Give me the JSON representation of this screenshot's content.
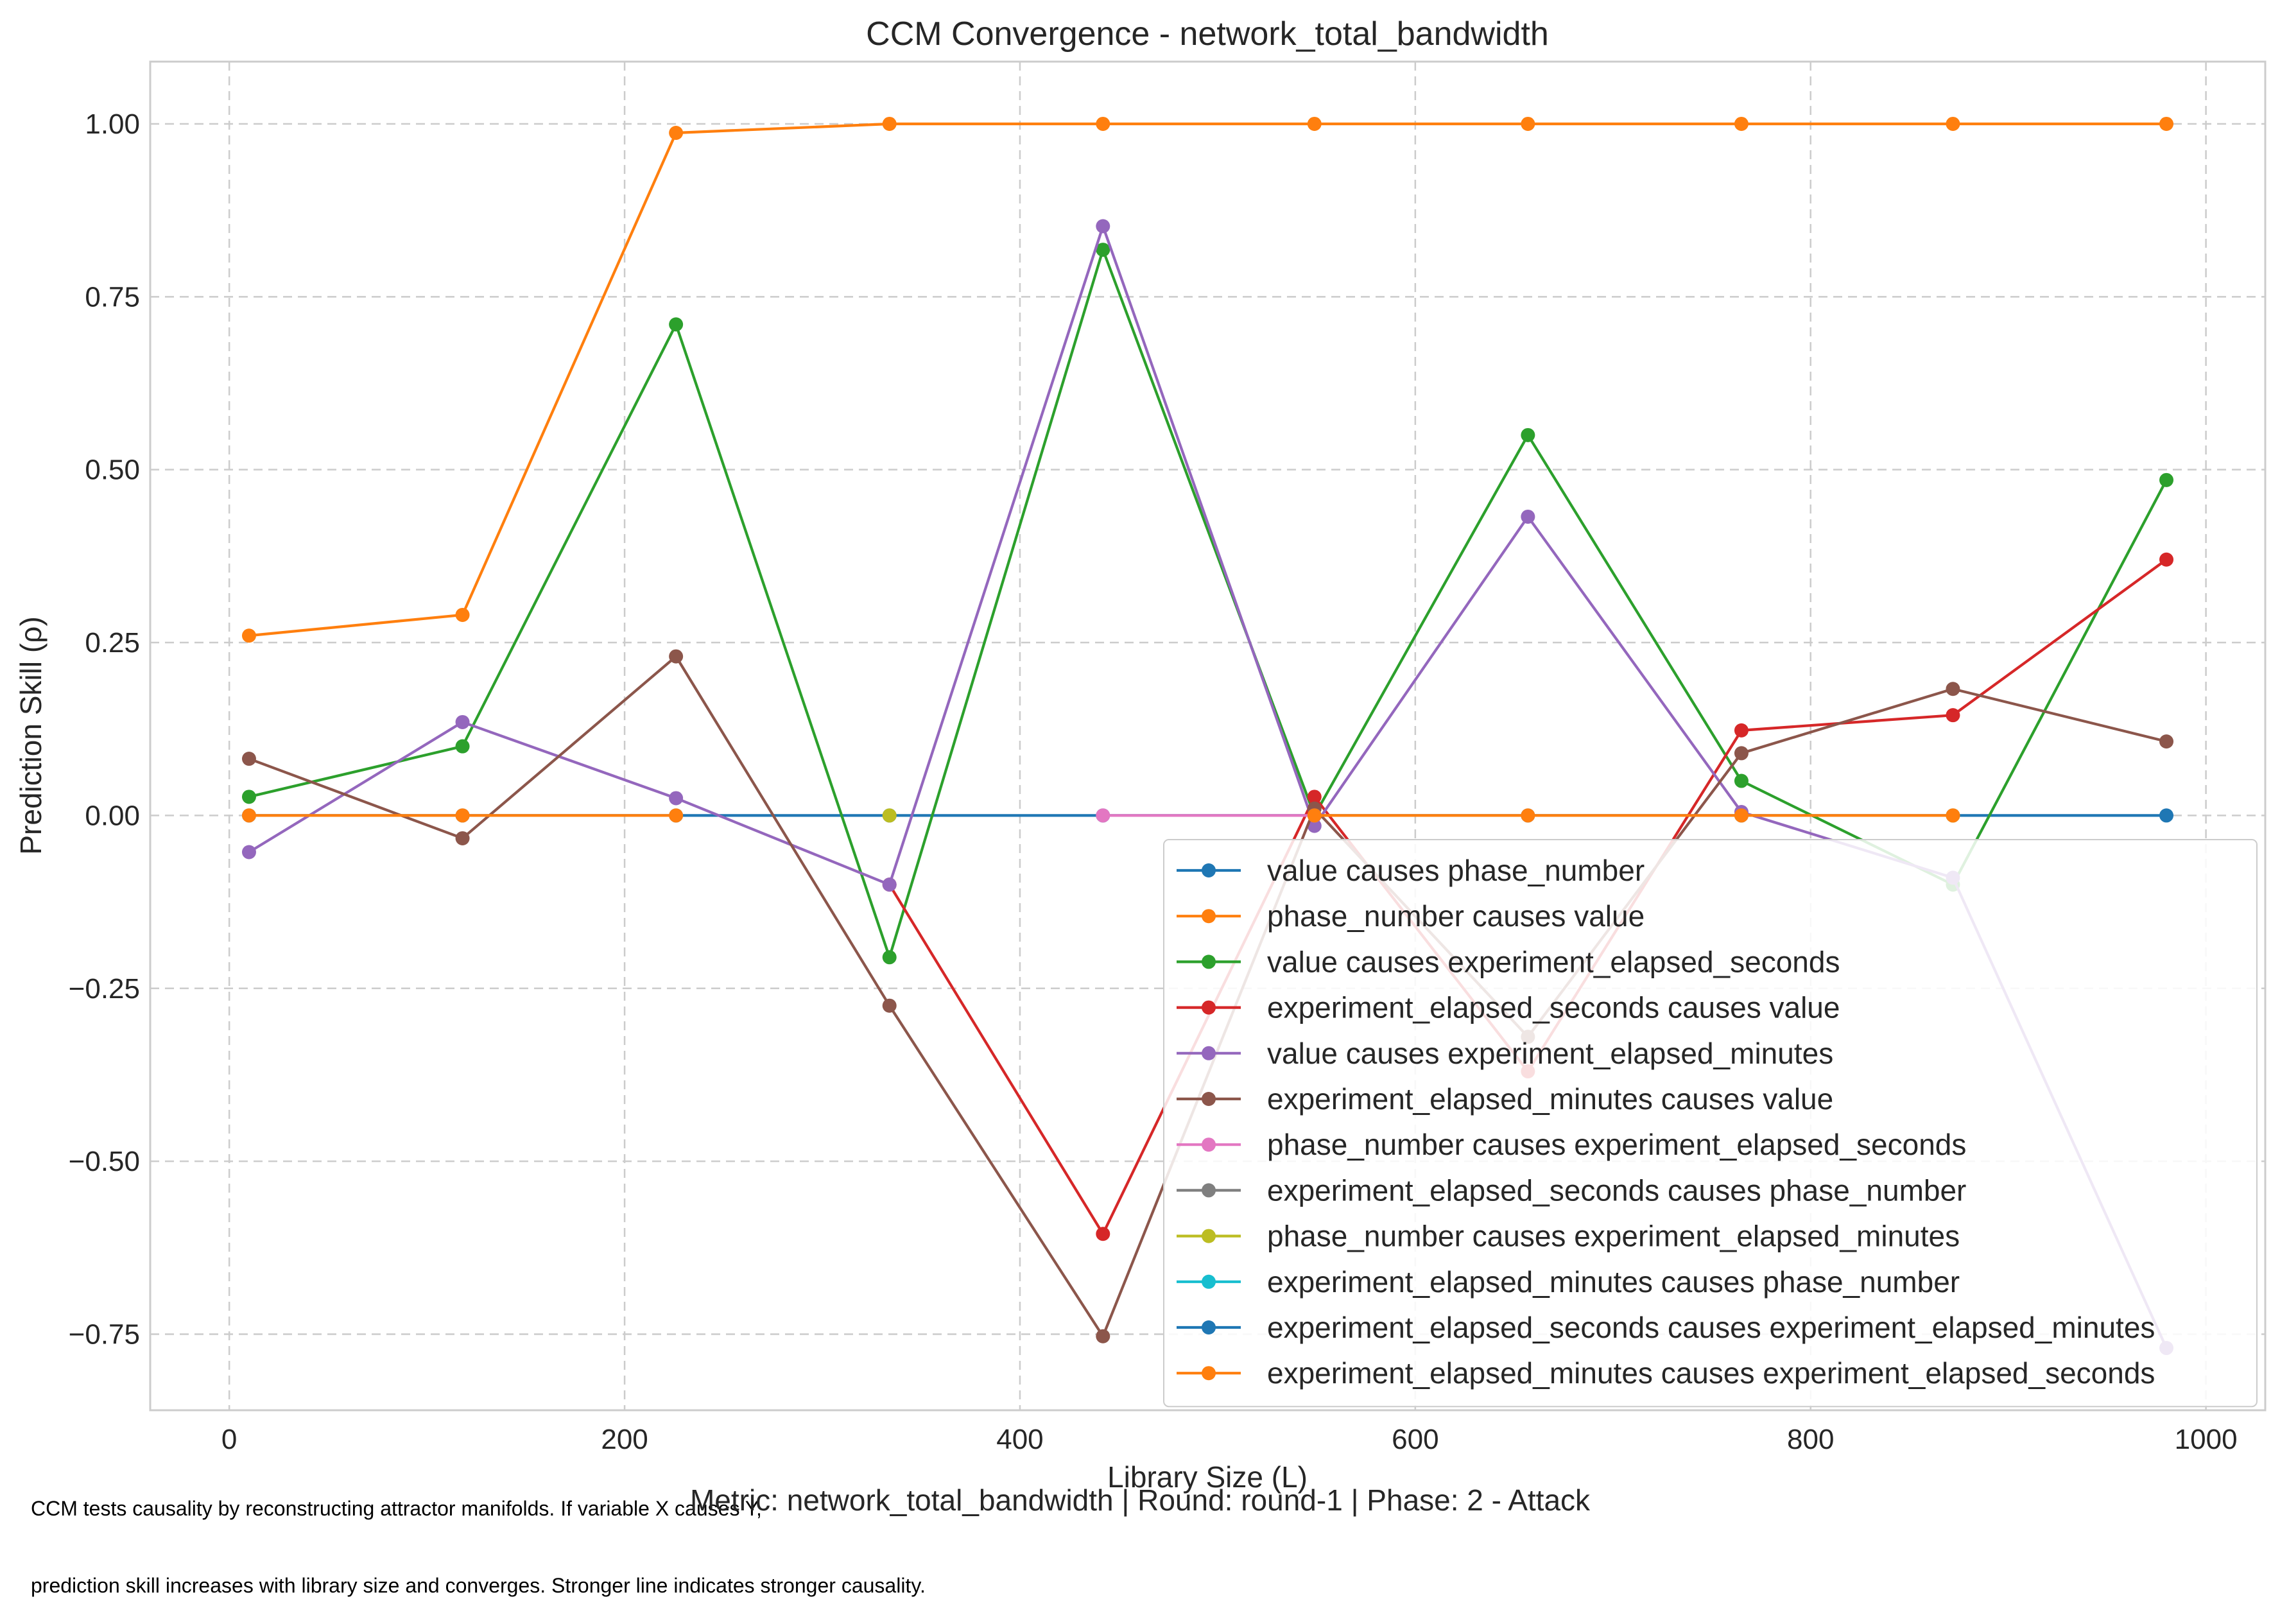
{
  "chart_data": {
    "type": "line",
    "title": "CCM Convergence - network_total_bandwidth",
    "xlabel": "Library Size (L)",
    "ylabel": "Prediction Skill (ρ)",
    "xlim": [
      -40,
      1030
    ],
    "ylim": [
      -0.86,
      1.09
    ],
    "xticks": [
      0,
      200,
      400,
      600,
      800,
      1000
    ],
    "xtick_labels": [
      "0",
      "200",
      "400",
      "600",
      "800",
      "1000"
    ],
    "yticks": [
      -0.75,
      -0.5,
      -0.25,
      0.0,
      0.25,
      0.5,
      0.75,
      1.0
    ],
    "ytick_labels": [
      "−0.75",
      "−0.50",
      "−0.25",
      "0.00",
      "0.25",
      "0.50",
      "0.75",
      "1.00"
    ],
    "grid": true,
    "legend_position": "lower-right",
    "x": [
      10,
      118,
      226,
      334,
      442,
      549,
      657,
      765,
      872,
      980
    ],
    "series": [
      {
        "name": "value causes phase_number",
        "color": "#1f77b4",
        "values": [
          0,
          0,
          0,
          0,
          0,
          0,
          0,
          0,
          0,
          0
        ]
      },
      {
        "name": "phase_number causes value",
        "color": "#ff7f0e",
        "values": [
          0.26,
          0.29,
          0.987,
          1.0,
          1.0,
          1.0,
          1.0,
          1.0,
          1.0,
          1.0
        ]
      },
      {
        "name": "value causes experiment_elapsed_seconds",
        "color": "#2ca02c",
        "values": [
          0.027,
          0.1,
          0.71,
          -0.205,
          0.818,
          0.0,
          0.55,
          0.05,
          -0.1,
          0.485
        ]
      },
      {
        "name": "experiment_elapsed_seconds causes value",
        "color": "#d62728",
        "values": [
          null,
          null,
          null,
          -0.1,
          -0.605,
          0.027,
          -0.37,
          0.123,
          0.145,
          0.37
        ]
      },
      {
        "name": "value causes experiment_elapsed_minutes",
        "color": "#9467bd",
        "values": [
          -0.053,
          0.135,
          0.025,
          -0.1,
          0.852,
          -0.015,
          0.432,
          0.005,
          -0.09,
          -0.77
        ]
      },
      {
        "name": "experiment_elapsed_minutes causes value",
        "color": "#8c564b",
        "values": [
          0.082,
          -0.033,
          0.23,
          -0.275,
          -0.753,
          0.01,
          -0.32,
          0.09,
          0.183,
          0.107
        ]
      },
      {
        "name": "phase_number causes experiment_elapsed_seconds",
        "color": "#e377c2",
        "values": [
          null,
          null,
          null,
          null,
          0,
          0,
          null,
          null,
          null,
          null
        ]
      },
      {
        "name": "experiment_elapsed_seconds causes phase_number",
        "color": "#7f7f7f",
        "values": [
          null,
          null,
          null,
          null,
          null,
          null,
          null,
          null,
          null,
          null
        ]
      },
      {
        "name": "phase_number causes experiment_elapsed_minutes",
        "color": "#bcbd22",
        "values": [
          null,
          null,
          null,
          0,
          null,
          null,
          null,
          null,
          0,
          null
        ]
      },
      {
        "name": "experiment_elapsed_minutes causes phase_number",
        "color": "#17becf",
        "values": [
          null,
          null,
          null,
          null,
          null,
          null,
          null,
          null,
          null,
          null
        ]
      },
      {
        "name": "experiment_elapsed_seconds causes experiment_elapsed_minutes",
        "color": "#1f77b4",
        "values": [
          null,
          null,
          null,
          null,
          null,
          null,
          null,
          null,
          null,
          null
        ]
      },
      {
        "name": "experiment_elapsed_minutes causes experiment_elapsed_seconds",
        "color": "#ff7f0e",
        "values": [
          0,
          0,
          0,
          null,
          null,
          0,
          0,
          0,
          0,
          null
        ]
      }
    ]
  },
  "footnote": {
    "line1": "CCM tests causality by reconstructing attractor manifolds. If variable X causes Y,",
    "line2": "prediction skill increases with library size and converges. Stronger line indicates stronger causality."
  },
  "subtitle": "Metric: network_total_bandwidth | Round: round-1 | Phase: 2 - Attack"
}
